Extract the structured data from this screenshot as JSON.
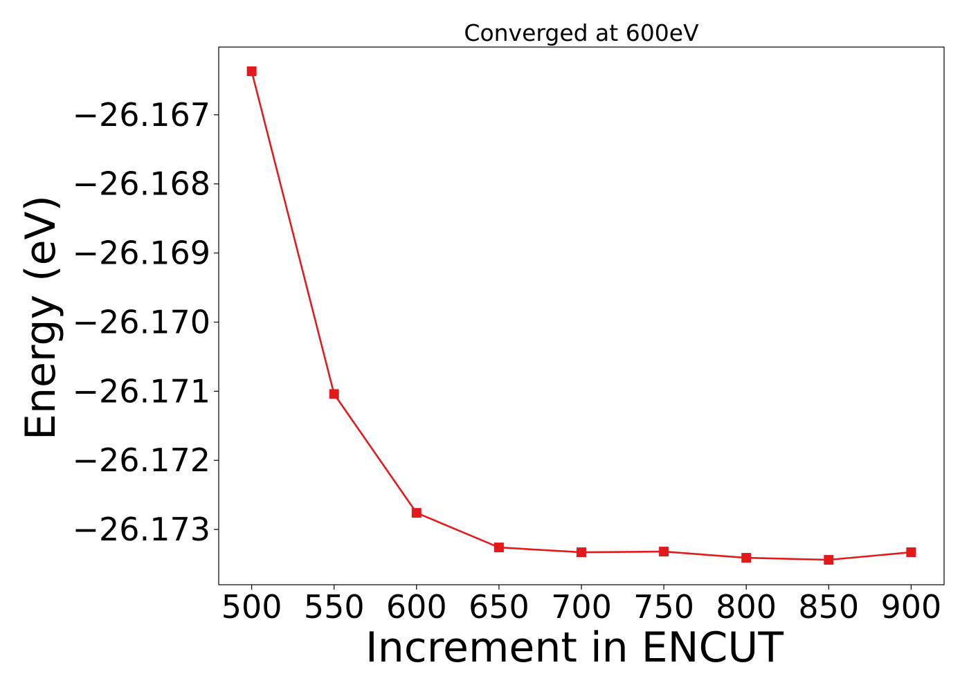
{
  "chart_data": {
    "type": "line",
    "title": "Converged at 600eV",
    "xlabel": "Increment in ENCUT",
    "ylabel": "Energy (eV)",
    "x": [
      500,
      550,
      600,
      650,
      700,
      750,
      800,
      850,
      900
    ],
    "xticks": [
      500,
      550,
      600,
      650,
      700,
      750,
      800,
      850,
      900
    ],
    "xtick_labels": [
      "500",
      "550",
      "600",
      "650",
      "700",
      "750",
      "800",
      "850",
      "900"
    ],
    "yticks": [
      -26.167,
      -26.168,
      -26.169,
      -26.17,
      -26.171,
      -26.172,
      -26.173
    ],
    "ytick_labels": [
      "−26.167",
      "−26.168",
      "−26.169",
      "−26.170",
      "−26.171",
      "−26.172",
      "−26.173"
    ],
    "xlim": [
      480,
      920
    ],
    "ylim": [
      -26.1738,
      -26.16602
    ],
    "grid": false,
    "series": [
      {
        "values": [
          -26.16637,
          -26.17104,
          -26.17276,
          -26.17326,
          -26.17333,
          -26.17332,
          -26.17341,
          -26.17344,
          -26.17333
        ],
        "color": "#e31a1c",
        "marker": "square"
      }
    ]
  }
}
